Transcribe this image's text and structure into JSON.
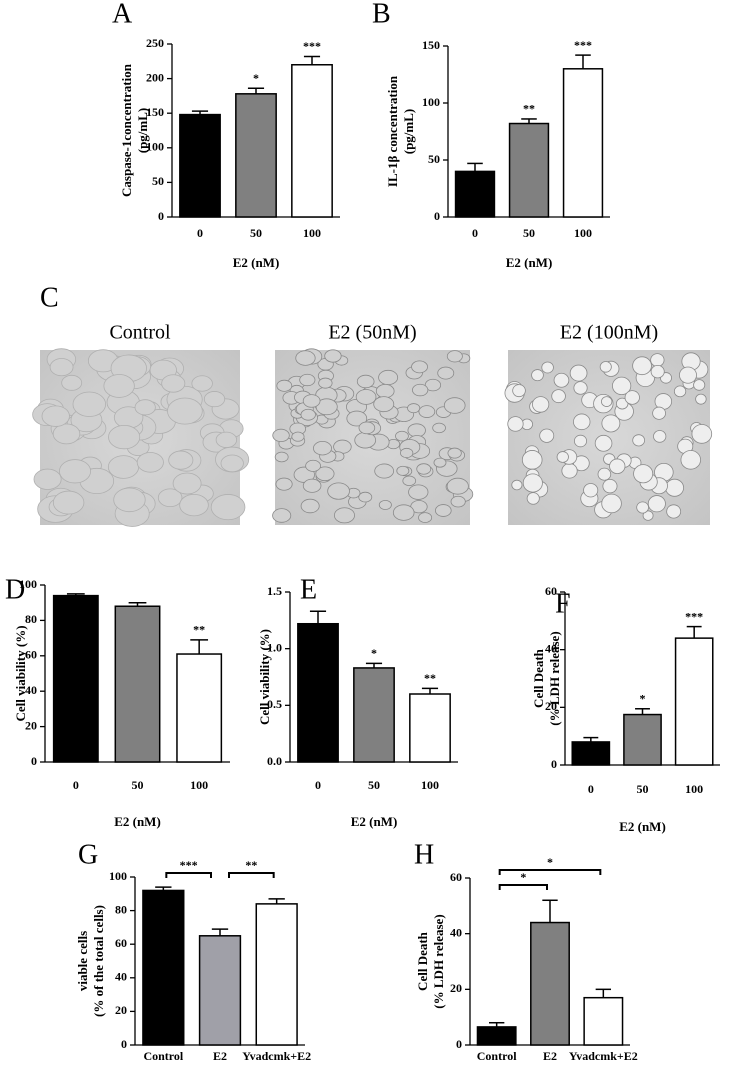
{
  "chart_data": [
    {
      "type": "bar",
      "label": "A",
      "ylabel": [
        "Caspase-1concentration",
        "(pg/mL)"
      ],
      "xlabel": "E2 (nM)",
      "categories": [
        "0",
        "50",
        "100"
      ],
      "values": [
        148,
        178,
        220
      ],
      "errors": [
        5,
        8,
        12
      ],
      "colors": [
        "#000000",
        "#808080",
        "#ffffff"
      ],
      "annotations": [
        null,
        "*",
        "***"
      ],
      "ylim": [
        0,
        250
      ],
      "yticks": [
        0,
        50,
        100,
        150,
        200,
        250
      ]
    },
    {
      "type": "bar",
      "label": "B",
      "ylabel": [
        "IL-1β concentration",
        "(pg/mL)"
      ],
      "xlabel": "E2 (nM)",
      "categories": [
        "0",
        "50",
        "100"
      ],
      "values": [
        40,
        82,
        130
      ],
      "errors": [
        7,
        4,
        12
      ],
      "colors": [
        "#000000",
        "#808080",
        "#ffffff"
      ],
      "annotations": [
        null,
        "**",
        "***"
      ],
      "ylim": [
        0,
        150
      ],
      "yticks": [
        0,
        50,
        100,
        150
      ]
    },
    {
      "type": "bar",
      "label": "D",
      "ylabel": [
        "Cell viability (%)"
      ],
      "xlabel": "E2 (nM)",
      "categories": [
        "0",
        "50",
        "100"
      ],
      "values": [
        94,
        88,
        61
      ],
      "errors": [
        1,
        2,
        8
      ],
      "colors": [
        "#000000",
        "#808080",
        "#ffffff"
      ],
      "annotations": [
        null,
        null,
        "**"
      ],
      "ylim": [
        0,
        100
      ],
      "yticks": [
        0,
        20,
        40,
        60,
        80,
        100
      ]
    },
    {
      "type": "bar",
      "label": "E",
      "ylabel": [
        "Cell viability (%)"
      ],
      "xlabel": "E2 (nM)",
      "categories": [
        "0",
        "50",
        "100"
      ],
      "values": [
        1.22,
        0.83,
        0.6
      ],
      "errors": [
        0.11,
        0.04,
        0.05
      ],
      "colors": [
        "#000000",
        "#808080",
        "#ffffff"
      ],
      "annotations": [
        null,
        "*",
        "**"
      ],
      "ylim": [
        0,
        1.5
      ],
      "yticks": [
        {
          "value": 0,
          "label": "0.0"
        },
        0.5,
        {
          "value": 1,
          "label": "1.0"
        },
        1.5
      ]
    },
    {
      "type": "bar",
      "label": "F",
      "ylabel": [
        "Cell Death",
        "(% LDH release)"
      ],
      "xlabel": "E2 (nM)",
      "categories": [
        "0",
        "50",
        "100"
      ],
      "values": [
        8,
        17.5,
        44
      ],
      "errors": [
        1.5,
        2,
        4
      ],
      "colors": [
        "#000000",
        "#808080",
        "#ffffff"
      ],
      "annotations": [
        null,
        "*",
        "***"
      ],
      "ylim": [
        0,
        60
      ],
      "yticks": [
        0,
        20,
        40,
        60
      ]
    },
    {
      "type": "bar",
      "label": "G",
      "ylabel": [
        "viable cells",
        "(% of the total cells)"
      ],
      "categories": [
        "Control",
        "E2",
        "Yvadcmk+E2"
      ],
      "values": [
        92,
        65,
        84
      ],
      "errors": [
        2,
        4,
        3
      ],
      "colors": [
        "#000000",
        "#a0a0a8",
        "#ffffff"
      ],
      "brackets": [
        {
          "between": [
            "Control",
            "E2"
          ],
          "label": "***"
        },
        {
          "between": [
            "E2",
            "Yvadcmk+E2"
          ],
          "label": "**"
        }
      ],
      "ylim": [
        0,
        100
      ],
      "yticks": [
        0,
        20,
        40,
        60,
        80,
        100
      ]
    },
    {
      "type": "bar",
      "label": "H",
      "ylabel": [
        "Cell Death",
        "(% LDH release)"
      ],
      "categories": [
        "Control",
        "E2",
        "Yvadcmk+E2"
      ],
      "values": [
        6.5,
        44,
        17
      ],
      "errors": [
        1.5,
        8,
        3
      ],
      "colors": [
        "#000000",
        "#808080",
        "#ffffff"
      ],
      "brackets": [
        {
          "between": [
            "Control",
            "E2"
          ],
          "label": "*"
        },
        {
          "between": [
            "Control",
            "Yvadcmk+E2"
          ],
          "label": "*"
        }
      ],
      "ylim": [
        0,
        60
      ],
      "yticks": [
        0,
        20,
        40,
        60
      ]
    }
  ],
  "micrographs": {
    "label": "C",
    "captions": [
      "Control",
      "E2 (50nM)",
      "E2 (100nM)"
    ]
  }
}
